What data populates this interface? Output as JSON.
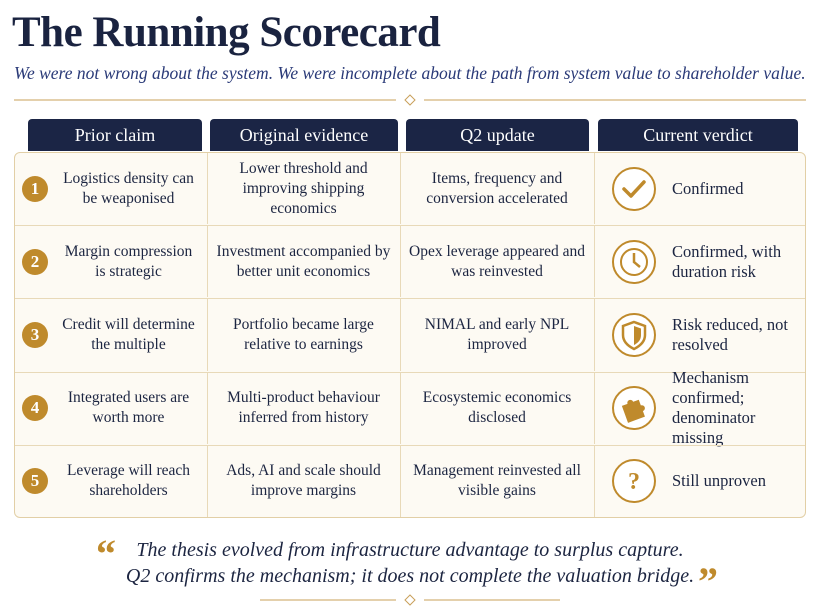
{
  "header": {
    "title": "The Running Scorecard",
    "subtitle": "We were not wrong about the system. We were incomplete about the path from system value to shareholder value."
  },
  "table": {
    "columns": [
      "Prior claim",
      "Original evidence",
      "Q2 update",
      "Current verdict"
    ],
    "rows": [
      {
        "number": "1",
        "cells": [
          "Logistics density can be weaponised",
          "Lower threshold and improving shipping economics",
          "Items, frequency and conversion accelerated",
          "Confirmed"
        ]
      },
      {
        "number": "2",
        "cells": [
          "Margin compression is strategic",
          "Investment accompanied by better unit economics",
          "Opex leverage appeared and was reinvested",
          "Confirmed, with duration risk"
        ]
      },
      {
        "number": "3",
        "cells": [
          "Credit will determine the multiple",
          "Portfolio became large relative to earnings",
          "NIMAL and early NPL improved",
          "Risk reduced, not resolved"
        ]
      },
      {
        "number": "4",
        "cells": [
          "Integrated users are worth more",
          "Multi-product behaviour inferred from history",
          "Ecosystemic economics disclosed",
          "Mechanism confirmed; denominator missing"
        ]
      },
      {
        "number": "5",
        "cells": [
          "Leverage will reach shareholders",
          "Ads, AI and scale should improve margins",
          "Management reinvested all visible gains",
          "Still unproven"
        ]
      }
    ]
  },
  "quote": {
    "lines": [
      "The thesis evolved from infrastructure advantage to surplus capture.",
      "Q2 confirms the mechanism; it does not complete the valuation bridge."
    ]
  }
}
